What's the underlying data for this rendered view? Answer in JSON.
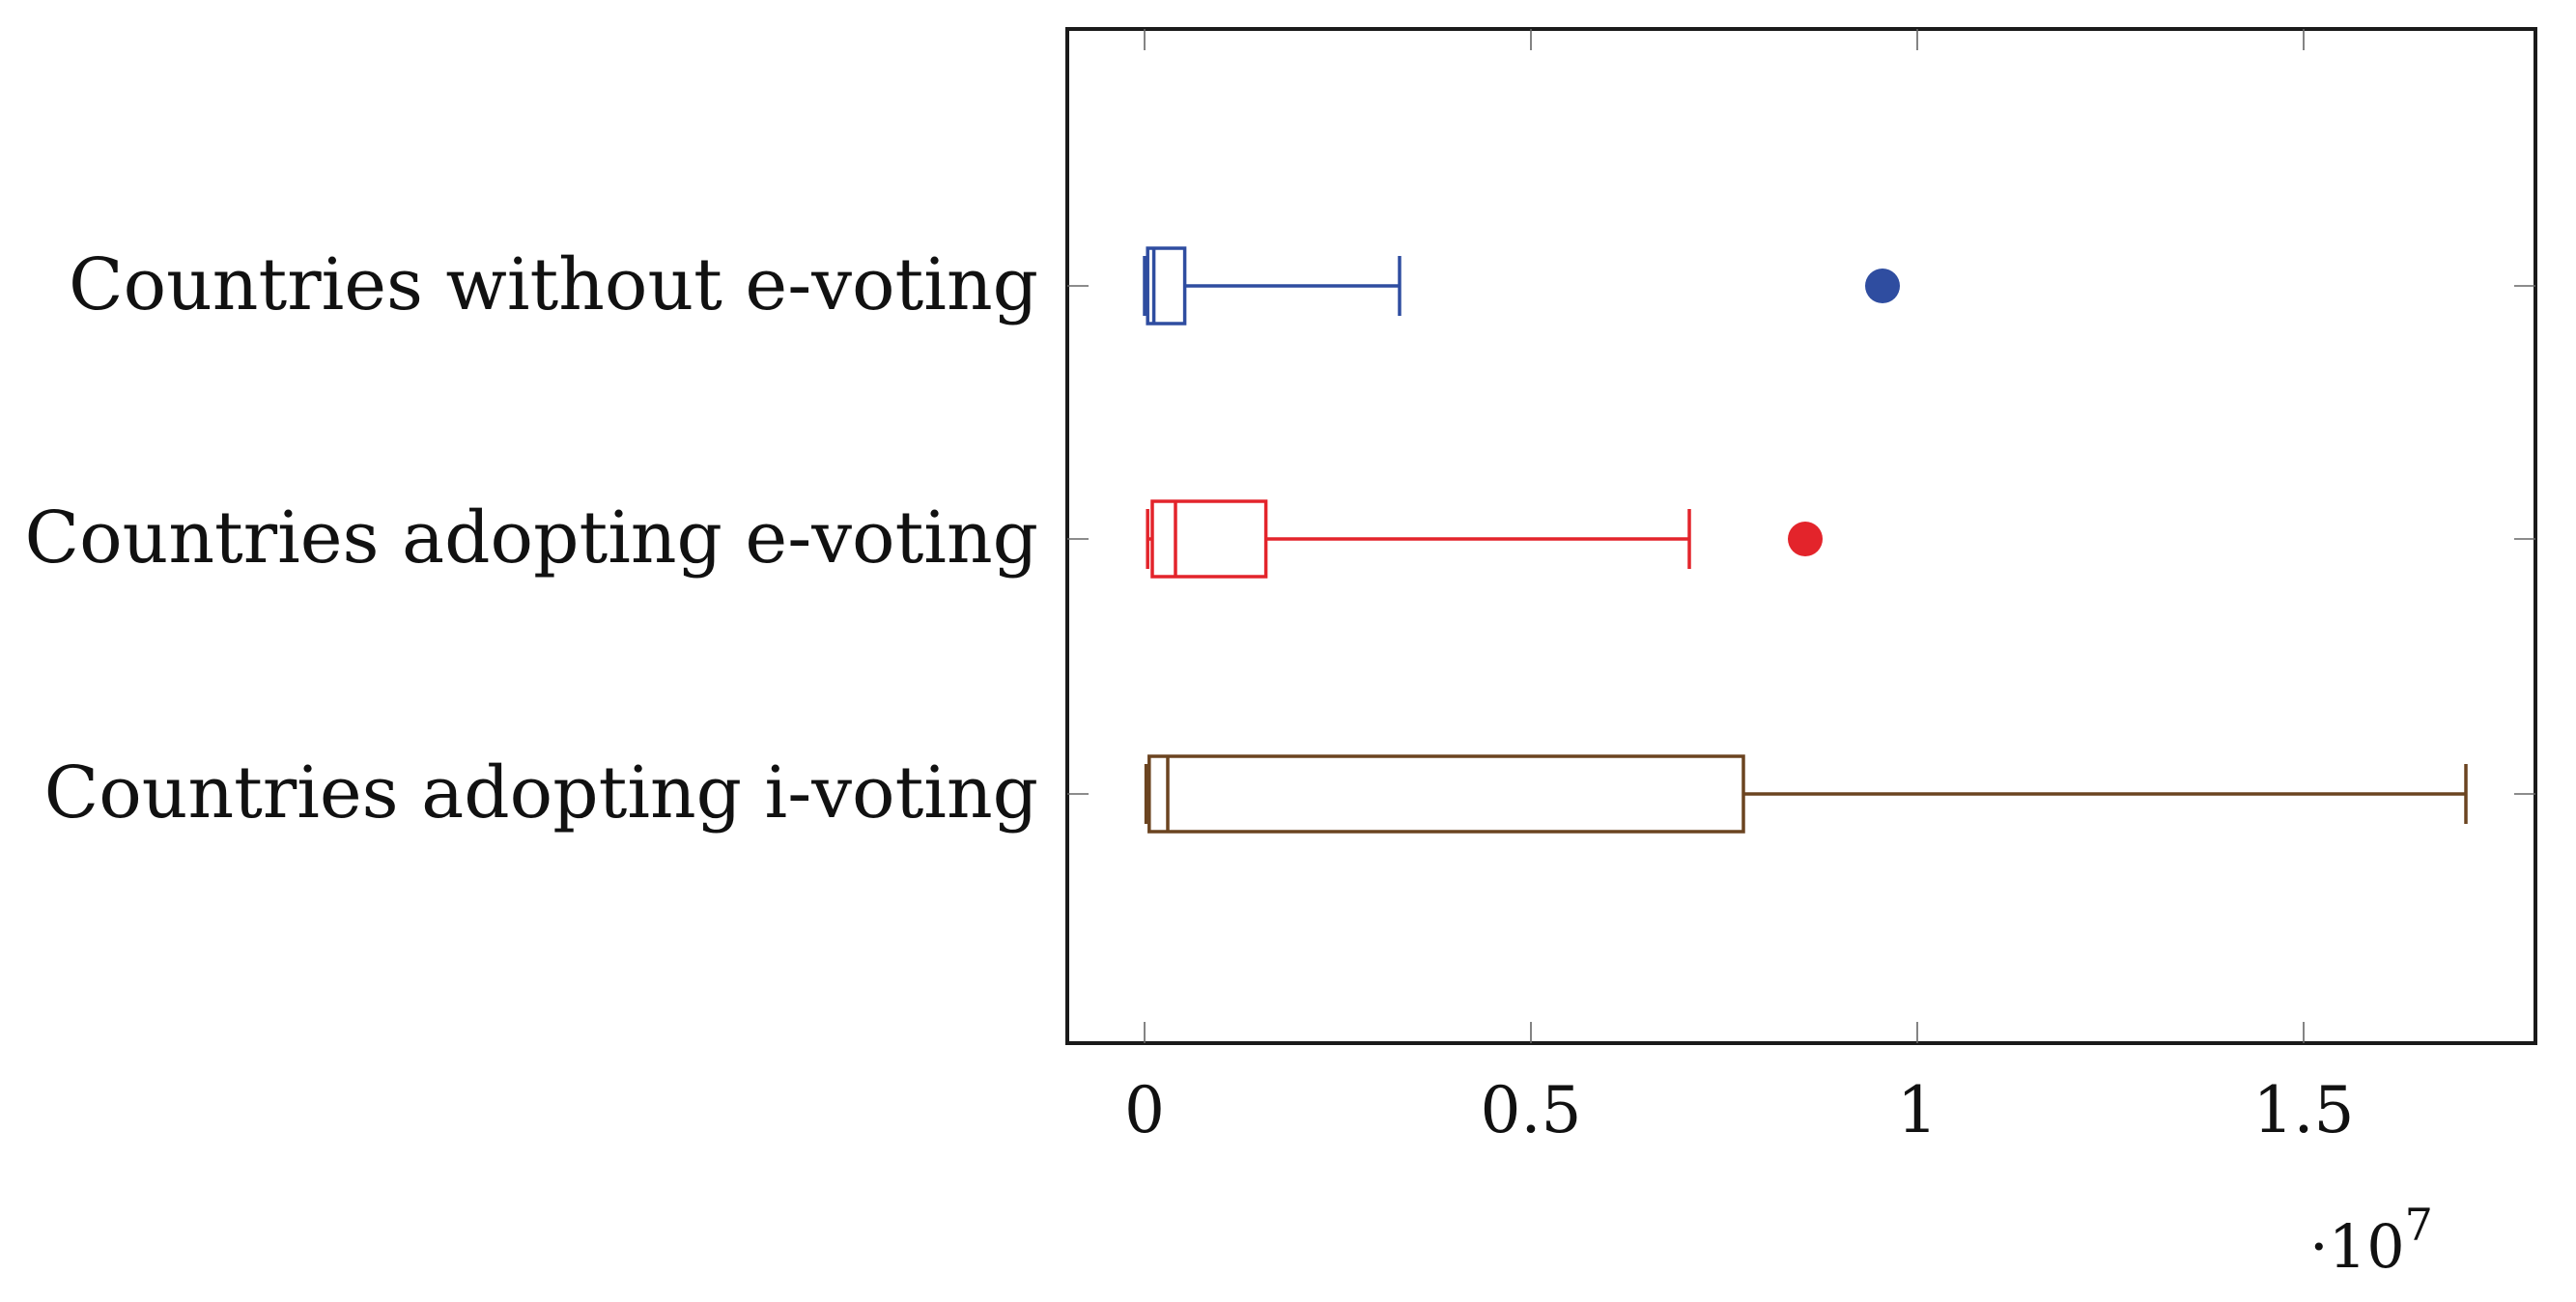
{
  "chart_data": {
    "type": "boxplot",
    "orientation": "horizontal",
    "title": "",
    "xlabel": "",
    "ylabel": "",
    "x_multiplier_label": "·10",
    "x_multiplier_exponent": "7",
    "xlim": [
      -0.1,
      1.8
    ],
    "xticks": [
      0,
      0.5,
      1,
      1.5
    ],
    "xtick_labels": [
      "0",
      "0.5",
      "1",
      "1.5"
    ],
    "grid": false,
    "legend": "none",
    "categories": [
      "Countries without e-voting",
      "Countries adopting e-voting",
      "Countries adopting i-voting"
    ],
    "series": [
      {
        "category": "Countries without e-voting",
        "color": "#2f4da0",
        "whisker_low": 0.0,
        "q1": 0.004,
        "median": 0.012,
        "q3": 0.052,
        "whisker_high": 0.33,
        "outliers": [
          0.955
        ]
      },
      {
        "category": "Countries adopting e-voting",
        "color": "#e3242b",
        "whisker_low": 0.004,
        "q1": 0.01,
        "median": 0.04,
        "q3": 0.157,
        "whisker_high": 0.705,
        "outliers": [
          0.855
        ]
      },
      {
        "category": "Countries adopting i-voting",
        "color": "#6b4420",
        "whisker_low": 0.002,
        "q1": 0.006,
        "median": 0.03,
        "q3": 0.775,
        "whisker_high": 1.71,
        "outliers": []
      }
    ]
  }
}
